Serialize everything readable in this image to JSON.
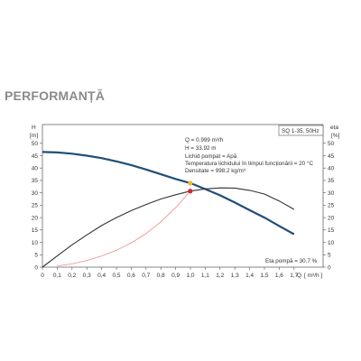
{
  "page": {
    "heading": "PERFORMANȚĂ"
  },
  "chart_data": {
    "type": "line",
    "model_label": "SQ 1-35, 50Hz",
    "x_label": "Q",
    "x_unit": "[ m³/h ]",
    "y_left_label": "H",
    "y_left_unit": "[m]",
    "y_right_label": "eta",
    "y_right_unit": "[%]",
    "xlim": [
      0,
      1.8
    ],
    "ylim_left": [
      0,
      55
    ],
    "ylim_right": [
      0,
      55
    ],
    "x_ticks": [
      "0",
      "0,1",
      "0,2",
      "0,3",
      "0,4",
      "0,5",
      "0,6",
      "0,7",
      "0,8",
      "0,9",
      "1,0",
      "1,1",
      "1,2",
      "1,3",
      "1,4",
      "1,5",
      "1,6",
      "1,7"
    ],
    "y_ticks": [
      "0",
      "5",
      "10",
      "15",
      "20",
      "25",
      "30",
      "35",
      "40",
      "45",
      "50"
    ],
    "grid": false,
    "info_lines": [
      "Q = 0.999  m³/h",
      "H = 33.92  m",
      "Lichid pompat = Apă",
      "Temperatura lichidului în timpul funcționării = 20  °C",
      "Densitate = 998.2  kg/m³"
    ],
    "efficiency_label": "Eta pompă = 30.7 %",
    "series": [
      {
        "role": "head",
        "color": "#1f4e79",
        "x": [
          0,
          0.1,
          0.2,
          0.3,
          0.4,
          0.5,
          0.6,
          0.7,
          0.8,
          0.9,
          1.0,
          1.1,
          1.2,
          1.3,
          1.4,
          1.5,
          1.6,
          1.7
        ],
        "y": [
          46.5,
          46.3,
          45.8,
          45,
          44,
          42.7,
          41.2,
          39.4,
          37.5,
          35.6,
          33.9,
          31.5,
          29,
          26.1,
          23,
          20,
          16.6,
          13.3
        ]
      },
      {
        "role": "efficiency",
        "color": "#333333",
        "x": [
          0,
          0.1,
          0.2,
          0.3,
          0.4,
          0.5,
          0.6,
          0.7,
          0.8,
          0.9,
          1.0,
          1.1,
          1.2,
          1.3,
          1.4,
          1.5,
          1.6,
          1.7
        ],
        "y": [
          0,
          4.5,
          9,
          13,
          16.8,
          20,
          22.8,
          25.3,
          27.5,
          29.2,
          30.7,
          31.6,
          32,
          31.9,
          31,
          29.5,
          26.7,
          23.3
        ]
      },
      {
        "role": "efficiency-reference",
        "color": "#f08a8a",
        "x": [
          0.1,
          0.2,
          0.3,
          0.4,
          0.5,
          0.6,
          0.7,
          0.8,
          0.9,
          1.0
        ],
        "y": [
          0.5,
          1.3,
          2.7,
          4.5,
          6.8,
          9.8,
          13.5,
          18.3,
          24,
          30.7
        ]
      }
    ],
    "duty_points": [
      {
        "role": "head",
        "x": 0.999,
        "y": 33.92,
        "color": "#f5b731"
      },
      {
        "role": "efficiency",
        "x": 0.999,
        "y": 30.7,
        "color": "#d62828"
      }
    ]
  }
}
